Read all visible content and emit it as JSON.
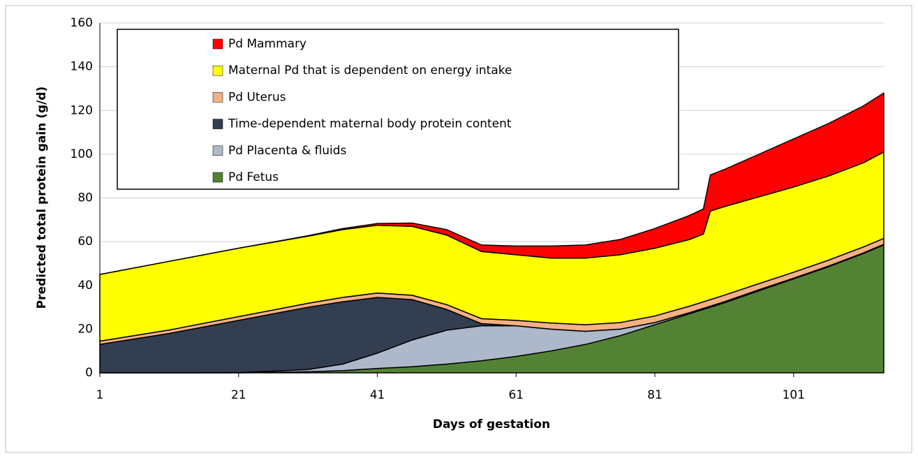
{
  "chart_data": {
    "type": "stacked-area",
    "xlabel": "Days of gestation",
    "ylabel": "Predicted total protein gain (g/d)",
    "x": [
      1,
      11,
      21,
      31,
      36,
      41,
      46,
      51,
      56,
      61,
      66,
      71,
      76,
      81,
      86,
      88,
      89,
      91,
      96,
      101,
      106,
      111,
      114
    ],
    "xlim": [
      1,
      114
    ],
    "xticks": [
      1,
      21,
      41,
      61,
      81,
      101
    ],
    "ylim": [
      0,
      160
    ],
    "yticks": [
      0,
      20,
      40,
      60,
      80,
      100,
      120,
      140,
      160
    ],
    "grid": true,
    "legend": "top-left",
    "series": [
      {
        "name": "Pd Fetus",
        "color": "#548235",
        "values": [
          0,
          0,
          0,
          0.5,
          1,
          2,
          2.8,
          4,
          5.5,
          7.5,
          10,
          13,
          17,
          22,
          27,
          29,
          30,
          32,
          37.5,
          43,
          48.5,
          54.5,
          58.5
        ]
      },
      {
        "name": "Pd Placenta & fluids",
        "color": "#adb9ca",
        "values": [
          0,
          0,
          0.1,
          1,
          3,
          7,
          12.2,
          15.5,
          16,
          14,
          10,
          6,
          3,
          1,
          0.5,
          0.5,
          0.5,
          0.5,
          0.5,
          0.3,
          0.3,
          0.3,
          0.3
        ]
      },
      {
        "name": "Time-dependent maternal body protein content",
        "color": "#333f50",
        "values": [
          13,
          18,
          23.9,
          28.5,
          28.5,
          25.5,
          18.5,
          9.5,
          1,
          0,
          0,
          0,
          0,
          0,
          0,
          0,
          0,
          0,
          0,
          0,
          0,
          0,
          0
        ]
      },
      {
        "name": "Pd Uterus",
        "color": "#f4b183",
        "values": [
          1.5,
          1.6,
          1.7,
          1.8,
          2,
          2,
          2,
          2.2,
          2.3,
          2.5,
          2.8,
          3,
          3,
          3,
          3,
          3,
          3,
          3,
          2.8,
          2.7,
          2.7,
          2.7,
          2.7
        ]
      },
      {
        "name": "Maternal Pd that is dependent on energy intake",
        "color": "#ffff00",
        "values": [
          30.5,
          31.4,
          31.3,
          30.7,
          31,
          31,
          31.5,
          31.8,
          30.7,
          30,
          29.7,
          30.5,
          31,
          31,
          30.5,
          31,
          40.5,
          40.5,
          39.7,
          39,
          38.5,
          38.5,
          39.5
        ]
      },
      {
        "name": "Pd Mammary",
        "color": "#ff0000",
        "values": [
          0,
          0,
          0,
          0.2,
          0.5,
          0.8,
          1.5,
          2.5,
          3,
          4,
          5.5,
          6,
          7,
          9,
          11,
          11.5,
          16.5,
          17,
          19.5,
          22,
          24,
          26,
          27
        ]
      }
    ]
  }
}
